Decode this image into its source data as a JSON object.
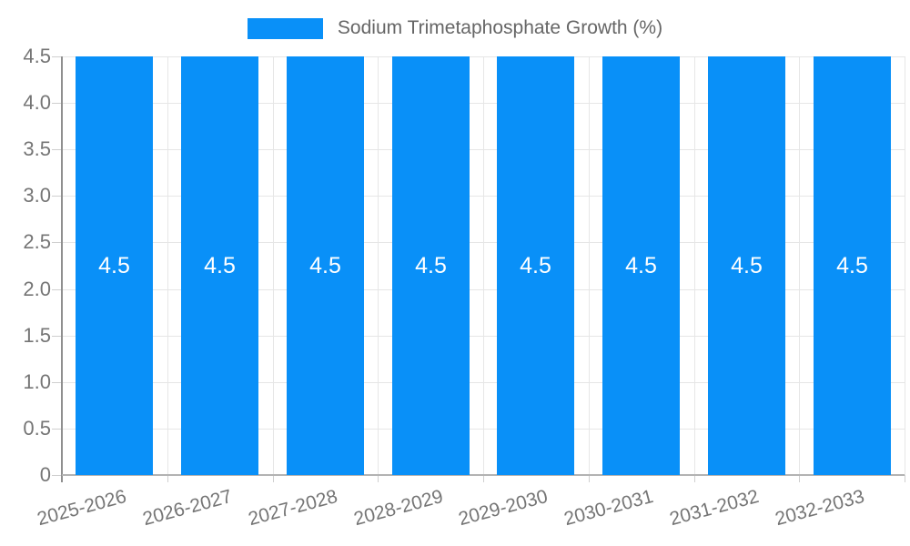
{
  "legend": {
    "label": "Sodium Trimetaphosphate Growth (%)",
    "swatch_color": "#0990f8"
  },
  "chart_data": {
    "type": "bar",
    "title": "",
    "series_name": "Sodium Trimetaphosphate Growth (%)",
    "categories": [
      "2025-2026",
      "2026-2027",
      "2027-2028",
      "2028-2029",
      "2029-2030",
      "2030-2031",
      "2031-2032",
      "2032-2033"
    ],
    "values": [
      4.5,
      4.5,
      4.5,
      4.5,
      4.5,
      4.5,
      4.5,
      4.5
    ],
    "bar_labels": [
      "4.5",
      "4.5",
      "4.5",
      "4.5",
      "4.5",
      "4.5",
      "4.5",
      "4.5"
    ],
    "xlabel": "",
    "ylabel": "",
    "ylim": [
      0,
      4.5
    ],
    "ytick_values": [
      0,
      0.5,
      1.0,
      1.5,
      2.0,
      2.5,
      3.0,
      3.5,
      4.0,
      4.5
    ],
    "ytick_labels": [
      "0",
      "0.5",
      "1.0",
      "1.5",
      "2.0",
      "2.5",
      "3.0",
      "3.5",
      "4.0",
      "4.5"
    ],
    "grid": "on",
    "legend_position": "top",
    "bar_color": "#0990f8",
    "grid_color": "#e6e6e6",
    "axis_line_color": "#8f8f8f",
    "bottom_axis_color": "#b3b3b3",
    "tick_color": "#cfcfcf",
    "text_color": "#757575",
    "bar_label_color": "#ffffff"
  }
}
